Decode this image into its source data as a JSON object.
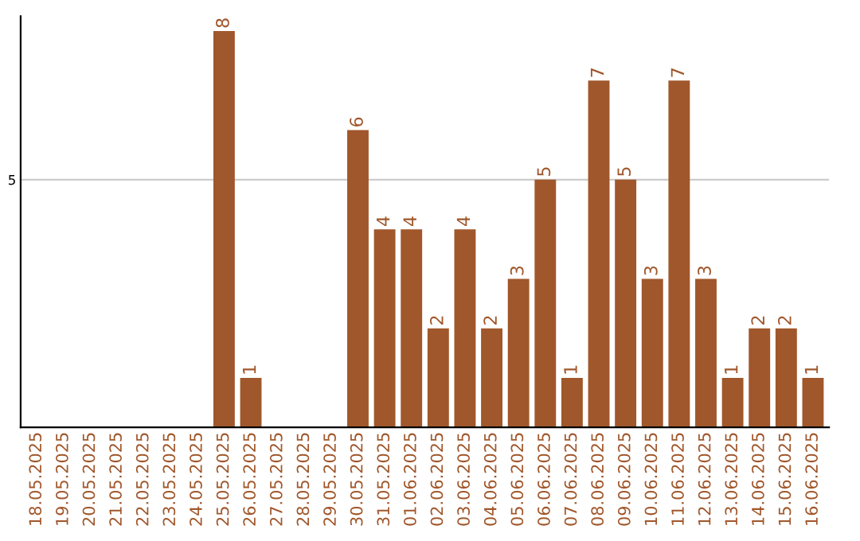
{
  "chart_data": {
    "type": "bar",
    "categories": [
      "18.05.2025",
      "19.05.2025",
      "20.05.2025",
      "21.05.2025",
      "22.05.2025",
      "23.05.2025",
      "24.05.2025",
      "25.05.2025",
      "26.05.2025",
      "27.05.2025",
      "28.05.2025",
      "29.05.2025",
      "30.05.2025",
      "31.05.2025",
      "01.06.2025",
      "02.06.2025",
      "03.06.2025",
      "04.06.2025",
      "05.06.2025",
      "06.06.2025",
      "07.06.2025",
      "08.06.2025",
      "09.06.2025",
      "10.06.2025",
      "11.06.2025",
      "12.06.2025",
      "13.06.2025",
      "14.06.2025",
      "15.06.2025",
      "16.06.2025"
    ],
    "values": [
      0,
      0,
      0,
      0,
      0,
      0,
      0,
      8,
      1,
      0,
      0,
      0,
      6,
      4,
      4,
      2,
      4,
      2,
      3,
      5,
      1,
      7,
      5,
      3,
      7,
      3,
      1,
      2,
      2,
      1
    ],
    "value_labels": [
      null,
      null,
      null,
      null,
      null,
      null,
      null,
      "8",
      "1",
      null,
      null,
      null,
      "6",
      "4",
      "4",
      "2",
      "4",
      "2",
      "3",
      "5",
      "1",
      "7",
      "5",
      "3",
      "7",
      "3",
      "1",
      "2",
      "2",
      "1"
    ],
    "color": "#a0572b",
    "ylim": [
      0,
      8.3
    ],
    "yticks": [
      5
    ],
    "grid": "y"
  }
}
